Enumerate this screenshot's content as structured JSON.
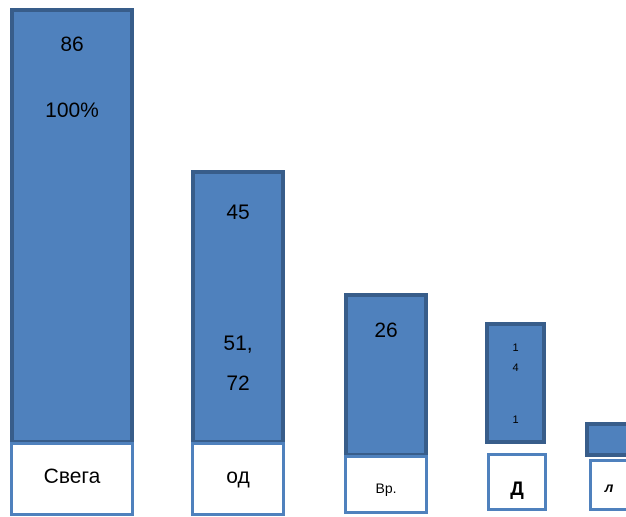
{
  "columns": [
    {
      "texts": [
        "86",
        "100%"
      ],
      "label": "Свега"
    },
    {
      "texts": [
        "45",
        "51,",
        "72"
      ],
      "label": "од"
    },
    {
      "texts": [
        "26"
      ],
      "label": "Вр."
    },
    {
      "texts": [
        "1",
        "4",
        "1"
      ],
      "label": "Д"
    },
    {
      "texts": [],
      "label": "л"
    }
  ]
}
